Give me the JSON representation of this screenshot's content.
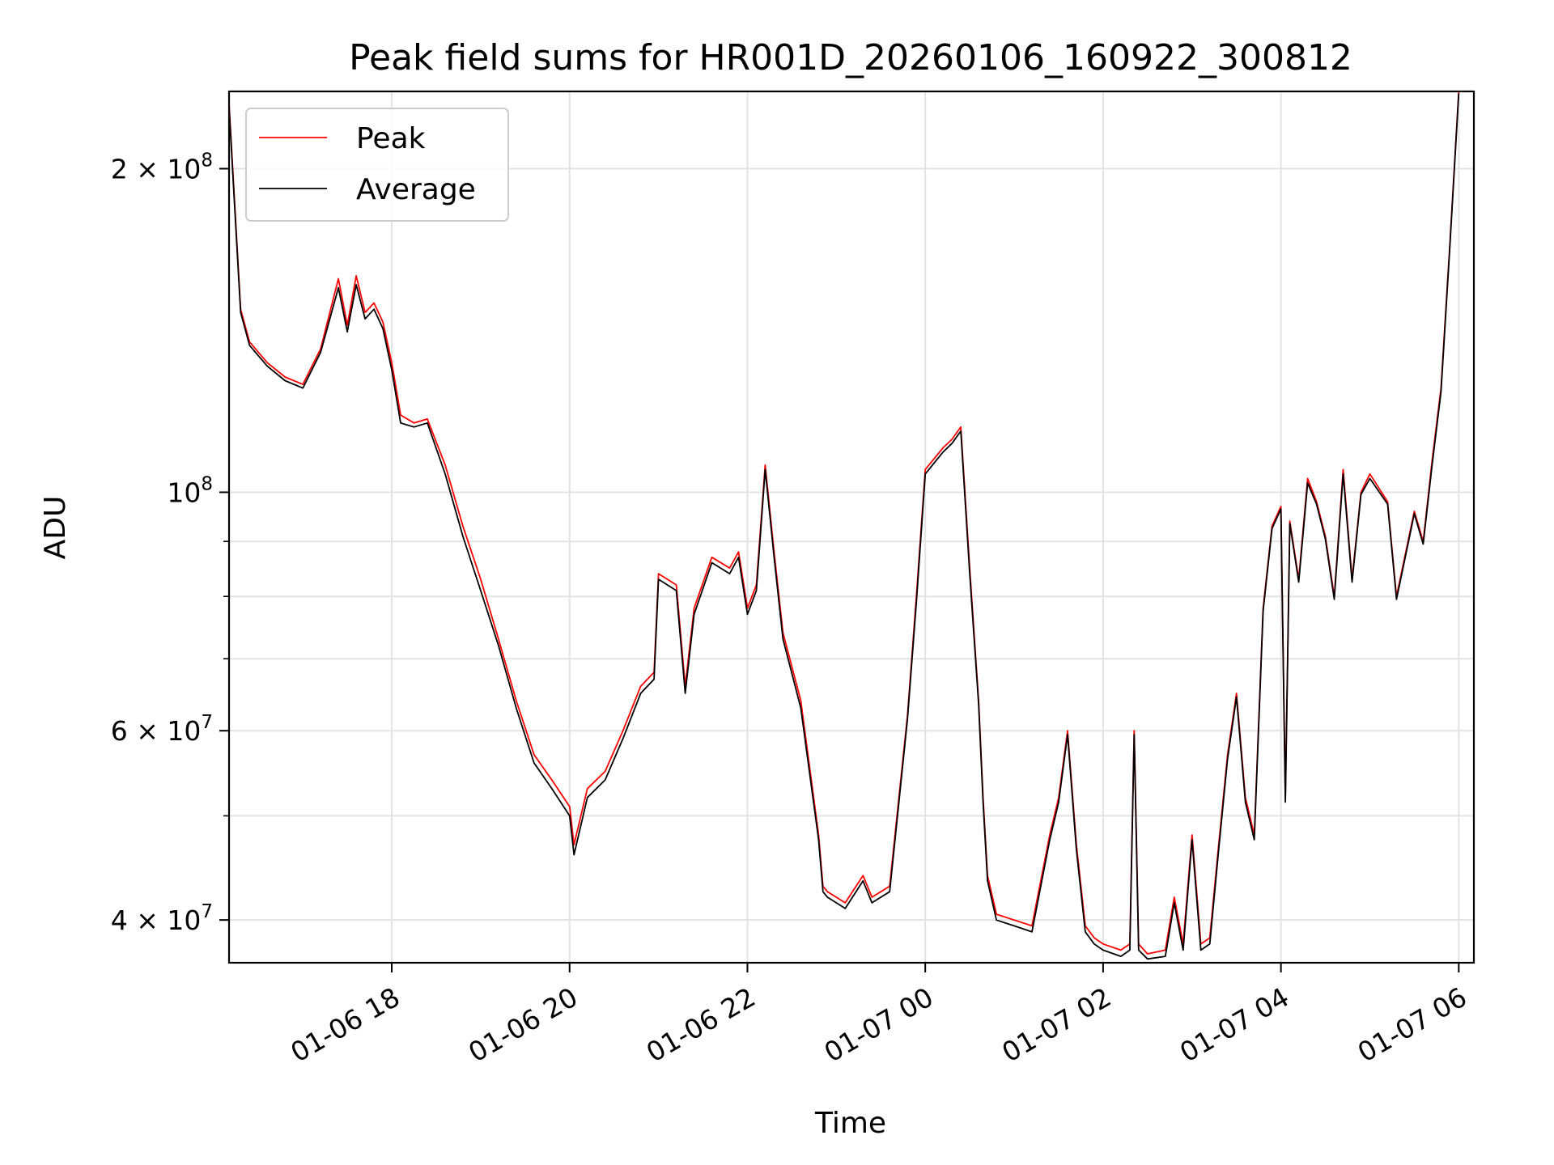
{
  "chart_data": {
    "type": "line",
    "title": "Peak field sums for HR001D_20260106_160922_300812",
    "xlabel": "Time",
    "ylabel": "ADU",
    "yscale": "log",
    "ylim": [
      36500000,
      236000000
    ],
    "xlim": [
      16.17,
      30.17
    ],
    "grid": true,
    "legend_position": "top-left",
    "x_ticks": [
      {
        "value": 18,
        "label": "01-06 18"
      },
      {
        "value": 20,
        "label": "01-06 20"
      },
      {
        "value": 22,
        "label": "01-06 22"
      },
      {
        "value": 24,
        "label": "01-07 00"
      },
      {
        "value": 26,
        "label": "01-07 02"
      },
      {
        "value": 28,
        "label": "01-07 04"
      },
      {
        "value": 30,
        "label": "01-07 06"
      }
    ],
    "y_ticks": [
      {
        "value": 40000000,
        "base": "4 × 10",
        "exp": "7"
      },
      {
        "value": 60000000,
        "base": "6 × 10",
        "exp": "7"
      },
      {
        "value": 100000000,
        "base": "10",
        "exp": "8"
      },
      {
        "value": 200000000,
        "base": "2 × 10",
        "exp": "8"
      }
    ],
    "y_minor_ticks": [
      50000000,
      70000000,
      80000000,
      90000000
    ],
    "series": [
      {
        "name": "Peak",
        "color": "#ff0000"
      },
      {
        "name": "Average",
        "color": "#000000"
      }
    ],
    "x_hours": [
      16.17,
      16.3,
      16.4,
      16.6,
      16.8,
      17.0,
      17.2,
      17.4,
      17.5,
      17.6,
      17.7,
      17.8,
      17.9,
      18.0,
      18.1,
      18.25,
      18.4,
      18.6,
      18.8,
      19.0,
      19.2,
      19.4,
      19.6,
      19.8,
      20.0,
      20.05,
      20.2,
      20.4,
      20.6,
      20.8,
      20.95,
      21.0,
      21.2,
      21.3,
      21.4,
      21.6,
      21.8,
      21.9,
      22.0,
      22.1,
      22.2,
      22.3,
      22.4,
      22.6,
      22.8,
      22.85,
      22.9,
      23.0,
      23.1,
      23.3,
      23.4,
      23.5,
      23.6,
      23.8,
      23.9,
      24.0,
      24.2,
      24.3,
      24.4,
      24.5,
      24.6,
      24.65,
      24.7,
      24.8,
      25.0,
      25.2,
      25.4,
      25.5,
      25.6,
      25.7,
      25.8,
      25.9,
      26.0,
      26.2,
      26.3,
      26.35,
      26.4,
      26.5,
      26.7,
      26.8,
      26.9,
      27.0,
      27.1,
      27.2,
      27.3,
      27.4,
      27.5,
      27.6,
      27.7,
      27.8,
      27.9,
      28.0,
      28.05,
      28.1,
      28.2,
      28.3,
      28.4,
      28.5,
      28.6,
      28.7,
      28.8,
      28.9,
      29.0,
      29.2,
      29.3,
      29.5,
      29.6,
      29.7,
      29.8,
      29.9,
      30.0
    ],
    "peak_values": [
      230000000,
      148000000,
      138000000,
      132000000,
      128000000,
      126000000,
      136000000,
      158000000,
      143000000,
      159000000,
      147000000,
      150000000,
      144000000,
      132000000,
      118000000,
      116000000,
      117000000,
      106000000,
      93000000,
      83000000,
      73000000,
      64000000,
      57000000,
      54000000,
      51000000,
      47000000,
      53000000,
      55000000,
      60000000,
      66000000,
      68000000,
      84000000,
      82000000,
      66000000,
      78000000,
      87000000,
      85000000,
      88000000,
      78000000,
      82000000,
      106000000,
      88000000,
      74000000,
      64000000,
      48000000,
      43000000,
      42500000,
      42000000,
      41500000,
      44000000,
      42000000,
      42500000,
      43000000,
      62000000,
      80000000,
      105000000,
      110000000,
      112000000,
      115000000,
      85000000,
      64000000,
      52000000,
      44000000,
      40500000,
      40000000,
      39500000,
      48000000,
      52000000,
      60000000,
      47000000,
      39500000,
      38500000,
      38000000,
      37500000,
      38000000,
      60000000,
      38000000,
      37200000,
      37500000,
      42000000,
      38000000,
      48000000,
      38000000,
      38500000,
      47000000,
      57000000,
      65000000,
      52000000,
      48000000,
      78000000,
      93000000,
      97000000,
      52000000,
      94000000,
      83000000,
      103000000,
      98000000,
      91000000,
      80000000,
      105000000,
      83000000,
      100000000,
      104000000,
      98000000,
      80000000,
      96000000,
      90000000,
      107000000,
      125000000,
      170000000,
      236000000
    ],
    "avg_values": [
      228000000,
      147000000,
      137000000,
      131000000,
      127000000,
      125000000,
      135000000,
      155000000,
      141000000,
      156000000,
      145000000,
      148000000,
      142000000,
      130000000,
      116000000,
      115000000,
      116000000,
      104000000,
      91000000,
      81000000,
      72000000,
      63000000,
      56000000,
      53000000,
      50000000,
      46000000,
      52000000,
      54000000,
      59000000,
      65000000,
      67000000,
      83000000,
      81000000,
      65000000,
      77000000,
      86000000,
      84000000,
      87000000,
      77000000,
      81000000,
      105000000,
      87000000,
      73000000,
      63000000,
      47500000,
      42500000,
      42000000,
      41500000,
      41000000,
      43500000,
      41500000,
      42000000,
      42500000,
      61500000,
      79000000,
      104000000,
      109000000,
      111000000,
      114000000,
      84000000,
      63500000,
      51500000,
      43500000,
      40000000,
      39500000,
      39000000,
      47500000,
      51500000,
      59500000,
      46500000,
      39000000,
      38000000,
      37500000,
      37000000,
      37500000,
      59500000,
      37500000,
      36800000,
      37000000,
      41500000,
      37500000,
      47500000,
      37500000,
      38000000,
      46500000,
      56500000,
      64500000,
      51500000,
      47500000,
      77500000,
      92500000,
      96500000,
      51500000,
      93500000,
      82500000,
      102000000,
      97500000,
      90500000,
      79500000,
      104000000,
      82500000,
      99500000,
      103000000,
      97500000,
      79500000,
      95500000,
      89500000,
      106000000,
      124000000,
      169000000,
      235000000
    ]
  }
}
